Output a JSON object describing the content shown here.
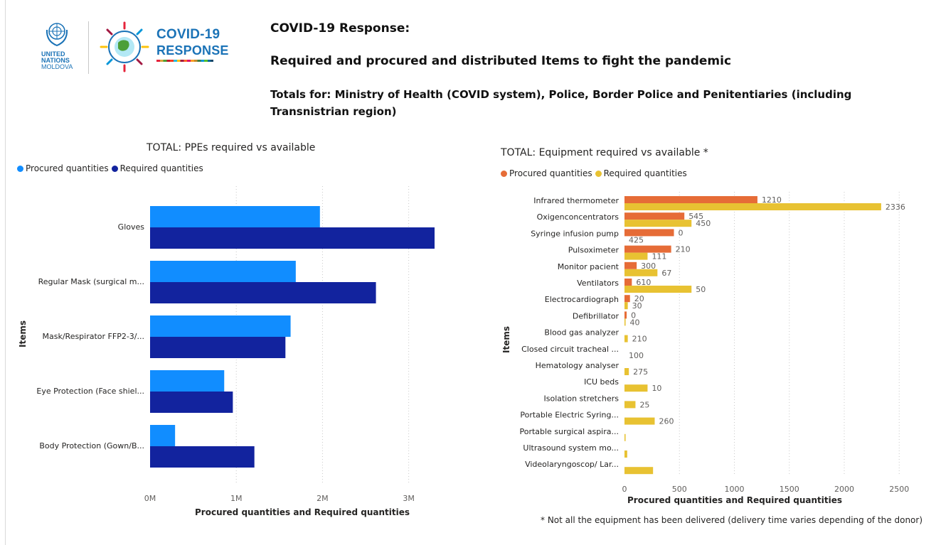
{
  "header": {
    "logo_un_line1": "UNITED",
    "logo_un_line2": "NATIONS",
    "logo_un_line3": "MOLDOVA",
    "logo_covid_line1": "COVID-19",
    "logo_covid_line2": "RESPONSE",
    "title": "COVID-19 Response:",
    "subtitle": "Required and procured and distributed Items to fight the pandemic",
    "totals_line": "Totals for: Ministry of Health (COVID system), Police, Border Police and Penitentiaries (including Transnistrian region)"
  },
  "colors": {
    "ppe_procured": "#118dff",
    "ppe_required": "#12239e",
    "eq_procured": "#e66c37",
    "eq_required": "#e8c232",
    "un_blue": "#1b73b7"
  },
  "chart_data": [
    {
      "type": "bar",
      "orientation": "horizontal",
      "title": "TOTAL: PPEs required vs available",
      "legend_position": "top-left",
      "categories": [
        "Gloves",
        "Regular Mask (surgical m...",
        "Mask/Respirator FFP2-3/...",
        "Eye Protection (Face shiel...",
        "Body Protection (Gown/B..."
      ],
      "series": [
        {
          "name": "Procured quantities",
          "values": [
            1970000,
            1690000,
            1630000,
            860000,
            290000
          ]
        },
        {
          "name": "Required quantities",
          "values": [
            3300000,
            2620000,
            1570000,
            960000,
            1210000
          ]
        }
      ],
      "xlabel": "Procured quantities and Required quantities",
      "ylabel": "Items",
      "xticks": [
        "0M",
        "1M",
        "2M",
        "3M"
      ],
      "xlim": [
        0,
        3350000
      ],
      "grid": "vertical dotted"
    },
    {
      "type": "bar",
      "orientation": "horizontal",
      "title": "TOTAL: Equipment required vs available *",
      "legend_position": "top-left",
      "categories": [
        "Infrared thermometer",
        "Oxigenconcentrators",
        "Syringe infusion pump",
        "Pulsoximeter",
        "Monitor pacient",
        "Ventilators",
        "Electrocardiograph",
        "Defibrillator",
        "Blood gas analyzer",
        "Closed circuit tracheal ...",
        "Hematology analyser",
        "ICU beds",
        "Isolation stretchers",
        "Portable Electric Syring...",
        "Portable surgical aspira...",
        "Ultrasound system mo...",
        "Videolaryngoscop/ Lar..."
      ],
      "series": [
        {
          "name": "Procured quantities",
          "values": [
            1210,
            545,
            450,
            425,
            111,
            67,
            50,
            20,
            0,
            0,
            0,
            0,
            0,
            0,
            0,
            0,
            0
          ]
        },
        {
          "name": "Required quantities",
          "values": [
            2336,
            610,
            0,
            210,
            300,
            610,
            30,
            10,
            30,
            0,
            40,
            210,
            100,
            275,
            10,
            25,
            260
          ]
        }
      ],
      "data_labels": [
        "1210",
        "2336",
        "545",
        "450",
        "0",
        "425",
        "210",
        "111",
        "300",
        "67",
        "610",
        "50",
        "20",
        "30",
        "0",
        "40",
        "210",
        "100",
        "275",
        "10",
        "25",
        "260"
      ],
      "xlabel": "Procured quantities and Required quantities",
      "ylabel": "Items",
      "xticks": [
        "0",
        "500",
        "1000",
        "1500",
        "2000",
        "2500"
      ],
      "xlim": [
        0,
        2550
      ],
      "grid": "vertical dotted"
    }
  ],
  "footnote": "* Not all the equipment has been delivered (delivery time varies depending of the donor)"
}
